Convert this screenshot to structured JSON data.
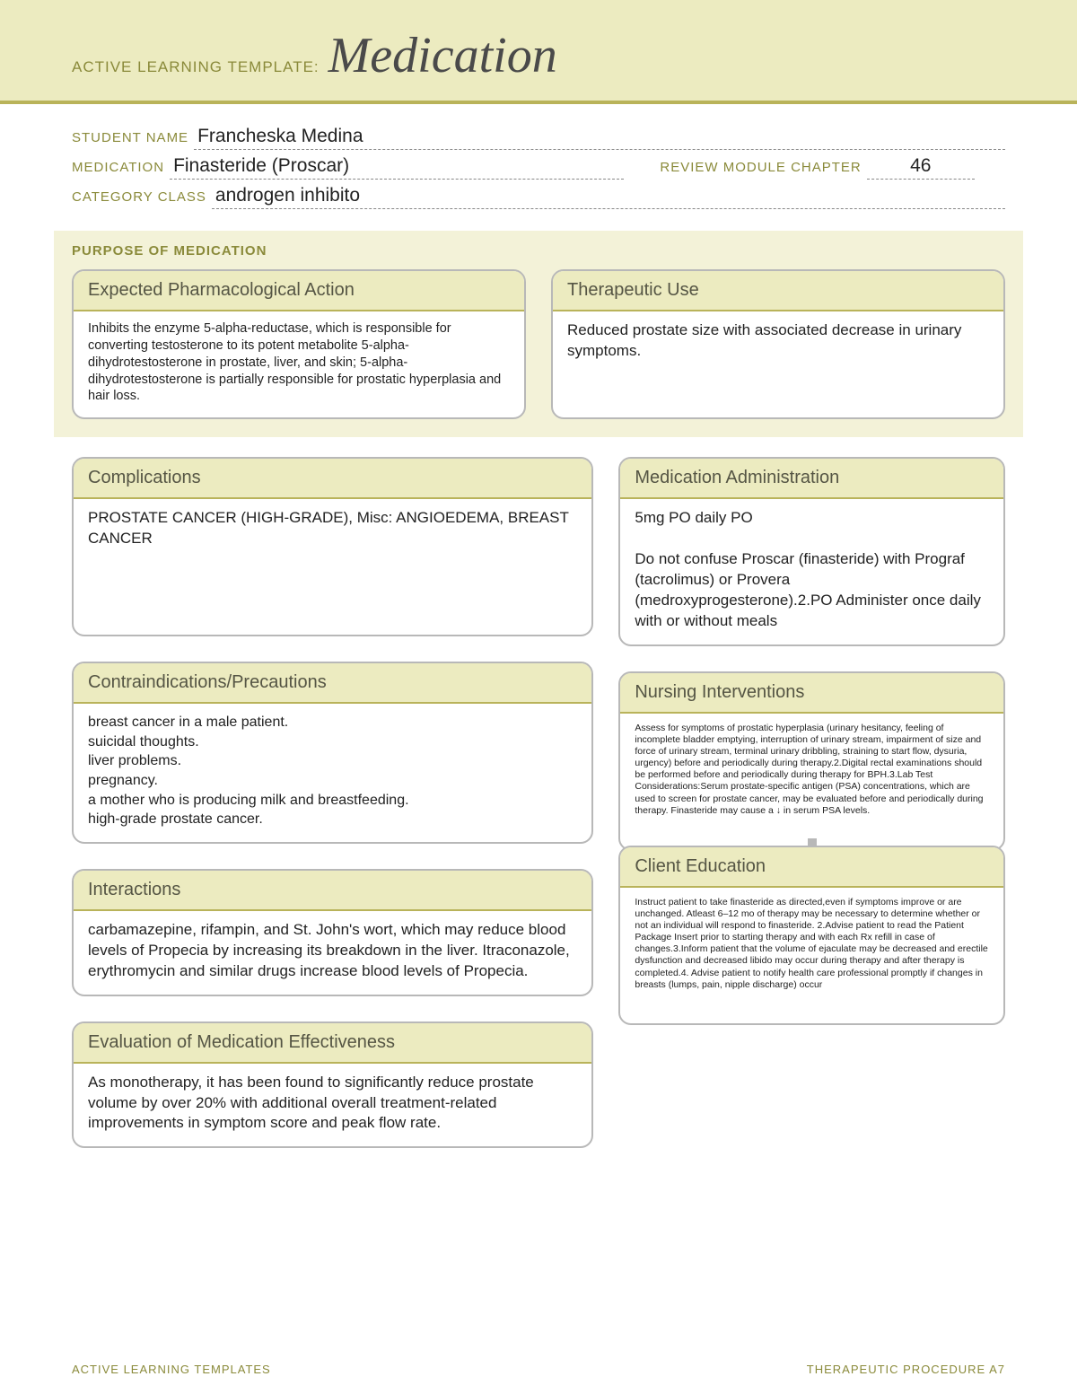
{
  "header": {
    "prefix": "ACTIVE LEARNING TEMPLATE:",
    "title": "Medication"
  },
  "info": {
    "student_label": "STUDENT NAME",
    "student_value": "Francheska Medina",
    "medication_label": "MEDICATION",
    "medication_value": "Finasteride (Proscar)",
    "chapter_label": "REVIEW MODULE CHAPTER",
    "chapter_value": "46",
    "category_label": "CATEGORY CLASS",
    "category_value": "androgen inhibito"
  },
  "purpose": {
    "section_title": "PURPOSE OF MEDICATION",
    "pharm": {
      "title": "Expected Pharmacological Action",
      "body": "Inhibits the enzyme 5-alpha-reductase, which is responsible for converting testosterone to its potent metabolite 5-alpha-dihydrotestosterone in prostate, liver, and skin; 5-alpha-dihydrotestosterone is partially responsible for prostatic hyperplasia and hair loss."
    },
    "therapeutic": {
      "title": "Therapeutic Use",
      "body": "Reduced prostate size with associated decrease in urinary symptoms."
    }
  },
  "left": {
    "complications": {
      "title": "Complications",
      "body": "PROSTATE CANCER (HIGH-GRADE), Misc: ANGIOEDEMA, BREAST CANCER"
    },
    "contra": {
      "title": "Contraindications/Precautions",
      "body": "breast cancer in a male patient.\nsuicidal thoughts.\nliver problems.\npregnancy.\na mother who is producing milk and breastfeeding.\nhigh-grade prostate cancer."
    },
    "interactions": {
      "title": "Interactions",
      "body": "carbamazepine, rifampin, and St. John's wort, which may reduce blood levels of Propecia by increasing its breakdown in the liver. Itraconazole, erythromycin and similar drugs increase blood levels of Propecia."
    },
    "eval": {
      "title": "Evaluation of Medication Effectiveness",
      "body": "As monotherapy, it has been found to significantly reduce prostate volume by over 20% with additional overall treatment-related improvements in symptom score and peak flow rate."
    }
  },
  "right": {
    "admin": {
      "title": "Medication Administration",
      "body": "5mg PO daily PO\n\nDo not confuse Proscar (finasteride) with Prograf (tacrolimus) or Provera (medroxyprogesterone).2.PO Administer once daily with or without meals"
    },
    "nursing": {
      "title": "Nursing Interventions",
      "body": "Assess for symptoms of prostatic hyperplasia (urinary hesitancy, feeling of incomplete bladder emptying, interruption of urinary stream, impairment of size and force of urinary stream, terminal urinary dribbling, straining to start flow, dysuria, urgency) before and periodically during therapy.2.Digital rectal examinations should be performed before and periodically during therapy for BPH.3.Lab Test Considerations:Serum prostate-specific antigen (PSA) concentrations, which are used to screen for prostate cancer, may be evaluated before and periodically during therapy. Finasteride may cause a ↓ in serum PSA levels."
    },
    "client": {
      "title": "Client Education",
      "body": "Instruct patient to take finasteride as directed,even if symptoms improve or are unchanged. Atleast 6–12 mo of therapy may be necessary to determine whether or not an individual will respond to finasteride. 2.Advise patient to read the Patient Package Insert prior to starting therapy and with each Rx refill in case of changes.3.Inform patient that the volume of ejaculate may be decreased and erectile dysfunction and decreased libido may occur during therapy and after therapy is completed.4. Advise patient to notify health care professional promptly if changes in breasts (lumps, pain, nipple discharge) occur"
    }
  },
  "footer": {
    "left": "ACTIVE LEARNING TEMPLATES",
    "right": "THERAPEUTIC PROCEDURE   A7"
  }
}
